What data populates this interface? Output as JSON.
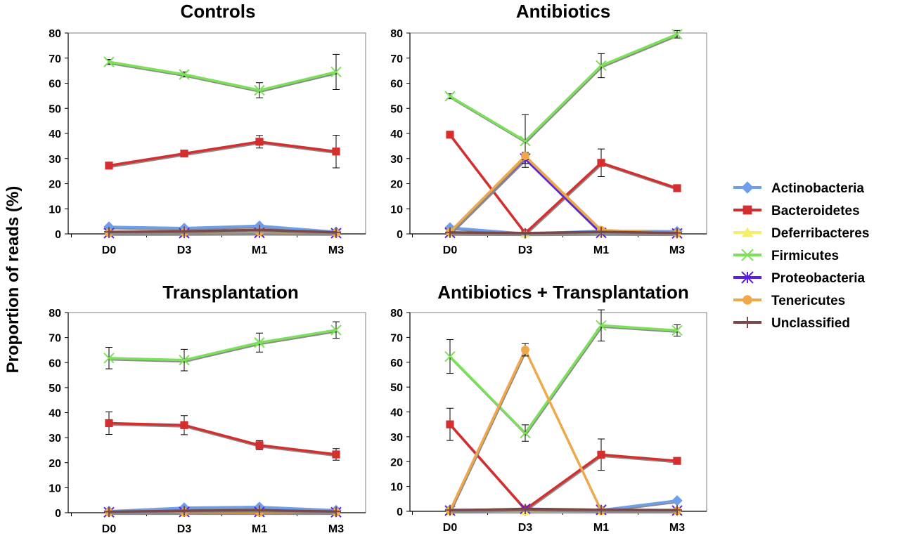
{
  "figure": {
    "ylabel": "Proportion of reads (%)"
  },
  "legend": [
    {
      "name": "Actinobacteria",
      "color": "#6f9fea",
      "marker": "diamond"
    },
    {
      "name": "Bacteroidetes",
      "color": "#d42e2e",
      "marker": "square"
    },
    {
      "name": "Deferribacteres",
      "color": "#f4ef6a",
      "marker": "triangle"
    },
    {
      "name": "Firmicutes",
      "color": "#7ce05a",
      "marker": "x"
    },
    {
      "name": "Proteobacteria",
      "color": "#5a1fe0",
      "marker": "asterisk"
    },
    {
      "name": "Tenericutes",
      "color": "#f0a94a",
      "marker": "circle"
    },
    {
      "name": "Unclassified",
      "color": "#7a4848",
      "marker": "plus"
    }
  ],
  "chart_data": [
    {
      "type": "line",
      "title": "Controls",
      "categories": [
        "D0",
        "D3",
        "M1",
        "M3"
      ],
      "ylim": [
        0,
        80
      ],
      "yticks": [
        0,
        10,
        20,
        30,
        40,
        50,
        60,
        70,
        80
      ],
      "series": [
        {
          "name": "Actinobacteria",
          "values": [
            2.8,
            2.3,
            3.2,
            0.8
          ]
        },
        {
          "name": "Bacteroidetes",
          "values": [
            27.2,
            32.0,
            36.7,
            32.8
          ],
          "err": [
            1.0,
            1.2,
            2.5,
            6.5
          ]
        },
        {
          "name": "Deferribacteres",
          "values": [
            0.2,
            0.2,
            0.3,
            0.2
          ]
        },
        {
          "name": "Firmicutes",
          "values": [
            68.5,
            63.5,
            57.2,
            64.5
          ],
          "err": [
            1.0,
            1.0,
            3.0,
            7.0
          ]
        },
        {
          "name": "Proteobacteria",
          "values": [
            0.3,
            0.3,
            0.4,
            0.3
          ]
        },
        {
          "name": "Tenericutes",
          "values": [
            0.4,
            0.6,
            0.8,
            0.3
          ]
        },
        {
          "name": "Unclassified",
          "values": [
            0.8,
            1.0,
            1.6,
            0.6
          ]
        }
      ]
    },
    {
      "type": "line",
      "title": "Antibiotics",
      "categories": [
        "D0",
        "D3",
        "M1",
        "M3"
      ],
      "ylim": [
        0,
        80
      ],
      "yticks": [
        0,
        10,
        20,
        30,
        40,
        50,
        60,
        70,
        80
      ],
      "series": [
        {
          "name": "Actinobacteria",
          "values": [
            2.5,
            0.1,
            1.2,
            1.0
          ]
        },
        {
          "name": "Bacteroidetes",
          "values": [
            39.5,
            0.3,
            28.3,
            18.2
          ],
          "err": [
            0.8,
            0.5,
            5.5,
            1.0
          ]
        },
        {
          "name": "Deferribacteres",
          "values": [
            0.2,
            0.1,
            0.2,
            0.1
          ]
        },
        {
          "name": "Firmicutes",
          "values": [
            54.8,
            37.0,
            67.0,
            79.5
          ],
          "err": [
            1.0,
            10.5,
            4.8,
            1.5
          ]
        },
        {
          "name": "Proteobacteria",
          "values": [
            0.4,
            30.0,
            0.4,
            0.2
          ],
          "err": [
            0.0,
            2.0,
            0.0,
            0.0
          ]
        },
        {
          "name": "Tenericutes",
          "values": [
            0.8,
            31.0,
            1.5,
            0.3
          ],
          "err": [
            0.0,
            1.5,
            0.0,
            0.0
          ]
        },
        {
          "name": "Unclassified",
          "values": [
            0.6,
            0.3,
            0.8,
            0.4
          ]
        }
      ]
    },
    {
      "type": "line",
      "title": "Transplantation",
      "categories": [
        "D0",
        "D3",
        "M1",
        "M3"
      ],
      "ylim": [
        0,
        80
      ],
      "yticks": [
        0,
        10,
        20,
        30,
        40,
        50,
        60,
        70,
        80
      ],
      "series": [
        {
          "name": "Actinobacteria",
          "values": [
            0.6,
            2.0,
            2.3,
            1.0
          ]
        },
        {
          "name": "Bacteroidetes",
          "values": [
            35.8,
            35.0,
            27.0,
            23.3
          ],
          "err": [
            4.5,
            3.8,
            1.8,
            2.3
          ]
        },
        {
          "name": "Deferribacteres",
          "values": [
            0.1,
            0.1,
            0.1,
            0.1
          ]
        },
        {
          "name": "Firmicutes",
          "values": [
            61.8,
            61.0,
            68.0,
            73.0
          ],
          "err": [
            4.3,
            4.3,
            3.8,
            3.3
          ]
        },
        {
          "name": "Proteobacteria",
          "values": [
            0.2,
            0.3,
            0.3,
            0.2
          ]
        },
        {
          "name": "Tenericutes",
          "values": [
            0.2,
            0.2,
            0.2,
            0.2
          ]
        },
        {
          "name": "Unclassified",
          "values": [
            0.4,
            0.8,
            1.0,
            0.5
          ]
        }
      ]
    },
    {
      "type": "line",
      "title": "Antibiotics + Transplantation",
      "categories": [
        "D0",
        "D3",
        "M1",
        "M3"
      ],
      "ylim": [
        0,
        80
      ],
      "yticks": [
        0,
        10,
        20,
        30,
        40,
        50,
        60,
        70,
        80
      ],
      "series": [
        {
          "name": "Actinobacteria",
          "values": [
            0.6,
            0.3,
            0.5,
            4.3
          ]
        },
        {
          "name": "Bacteroidetes",
          "values": [
            35.0,
            0.8,
            22.8,
            20.3
          ],
          "err": [
            6.5,
            0.5,
            6.3,
            0.8
          ]
        },
        {
          "name": "Deferribacteres",
          "values": [
            0.1,
            0.1,
            0.1,
            0.1
          ]
        },
        {
          "name": "Firmicutes",
          "values": [
            62.3,
            31.5,
            74.8,
            72.8
          ],
          "err": [
            6.8,
            3.3,
            6.3,
            2.3
          ]
        },
        {
          "name": "Proteobacteria",
          "values": [
            0.3,
            1.0,
            0.6,
            0.3
          ]
        },
        {
          "name": "Tenericutes",
          "values": [
            0.3,
            65.0,
            0.3,
            0.2
          ],
          "err": [
            0.0,
            2.5,
            0.0,
            0.0
          ]
        },
        {
          "name": "Unclassified",
          "values": [
            0.5,
            0.8,
            0.6,
            0.5
          ]
        }
      ]
    }
  ]
}
